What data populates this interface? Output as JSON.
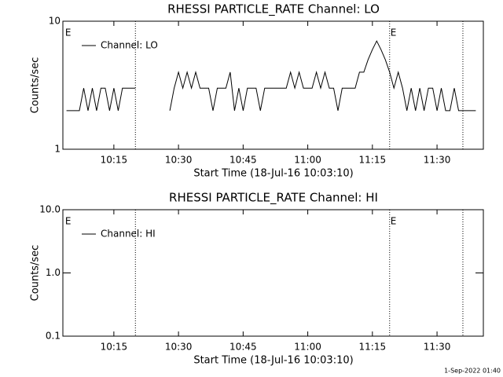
{
  "chart_data": [
    {
      "type": "line",
      "title": "RHESSI PARTICLE_RATE Channel: LO",
      "x_label": "Start Time (18-Jul-16 10:03:10)",
      "y_label": "Counts/sec",
      "ylog": true,
      "ylim": [
        1,
        10
      ],
      "yticks": [
        1,
        10
      ],
      "xlim": [
        "10:03:10",
        "11:40:45"
      ],
      "xticks": [
        "10:15",
        "10:30",
        "10:45",
        "11:00",
        "11:15",
        "11:30"
      ],
      "dotted_lines": [
        "10:20",
        "11:19",
        "11:36"
      ],
      "annotations": [
        {
          "x": "10:03:30",
          "text": "E"
        },
        {
          "x": "11:19",
          "text": "E"
        }
      ],
      "series": [
        {
          "name": "Channel: LO",
          "color": "#000000",
          "x": [
            "10:04",
            "10:05",
            "10:06",
            "10:07",
            "10:08",
            "10:09",
            "10:10",
            "10:11",
            "10:12",
            "10:13",
            "10:14",
            "10:15",
            "10:16",
            "10:17",
            "10:18",
            "10:19",
            "10:20",
            "10:21",
            "10:28",
            "10:29",
            "10:30",
            "10:31",
            "10:32",
            "10:33",
            "10:34",
            "10:35",
            "10:36",
            "10:37",
            "10:38",
            "10:39",
            "10:40",
            "10:41",
            "10:42",
            "10:43",
            "10:44",
            "10:45",
            "10:46",
            "10:47",
            "10:48",
            "10:49",
            "10:50",
            "10:51",
            "10:52",
            "10:53",
            "10:54",
            "10:55",
            "10:56",
            "10:57",
            "10:58",
            "10:59",
            "11:00",
            "11:01",
            "11:02",
            "11:03",
            "11:04",
            "11:05",
            "11:06",
            "11:07",
            "11:08",
            "11:09",
            "11:10",
            "11:11",
            "11:12",
            "11:13",
            "11:14",
            "11:15",
            "11:16",
            "11:17",
            "11:18",
            "11:19",
            "11:20",
            "11:21",
            "11:22",
            "11:23",
            "11:24",
            "11:25",
            "11:26",
            "11:27",
            "11:28",
            "11:29",
            "11:30",
            "11:31",
            "11:32",
            "11:33",
            "11:34",
            "11:35",
            "11:36",
            "11:37",
            "11:38",
            "11:39"
          ],
          "values": [
            2,
            2,
            2,
            2,
            3,
            2,
            3,
            2,
            3,
            3,
            2,
            3,
            2,
            3,
            3,
            3,
            3,
            null,
            2,
            3,
            4,
            3,
            4,
            3,
            4,
            3,
            3,
            3,
            2,
            3,
            3,
            3,
            4,
            2,
            3,
            2,
            3,
            3,
            3,
            2,
            3,
            3,
            3,
            3,
            3,
            3,
            4,
            3,
            4,
            3,
            3,
            3,
            4,
            3,
            4,
            3,
            3,
            2,
            3,
            3,
            3,
            3,
            4,
            4,
            5,
            6,
            7,
            6,
            5,
            4,
            3,
            4,
            3,
            2,
            3,
            2,
            3,
            2,
            3,
            3,
            2,
            3,
            2,
            2,
            3,
            2,
            2,
            2,
            2,
            2
          ]
        }
      ]
    },
    {
      "type": "line",
      "title": "RHESSI PARTICLE_RATE Channel: HI",
      "x_label": "Start Time (18-Jul-16 10:03:10)",
      "y_label": "Counts/sec",
      "ylog": true,
      "ylim": [
        0.1,
        10
      ],
      "yticks": [
        0.1,
        {
          "value": 1,
          "label": "1.0"
        },
        {
          "value": 10,
          "label": "10.0"
        }
      ],
      "xlim": [
        "10:03:10",
        "11:40:45"
      ],
      "xticks": [
        "10:15",
        "10:30",
        "10:45",
        "11:00",
        "11:15",
        "11:30"
      ],
      "dotted_lines": [
        "10:20",
        "11:19",
        "11:36"
      ],
      "annotations": [
        {
          "x": "10:03:30",
          "text": "E"
        },
        {
          "x": "11:19",
          "text": "E"
        }
      ],
      "series": [
        {
          "name": "Channel: HI",
          "color": "#000000",
          "x": [],
          "values": []
        }
      ]
    }
  ],
  "footer": "1-Sep-2022 01:40"
}
